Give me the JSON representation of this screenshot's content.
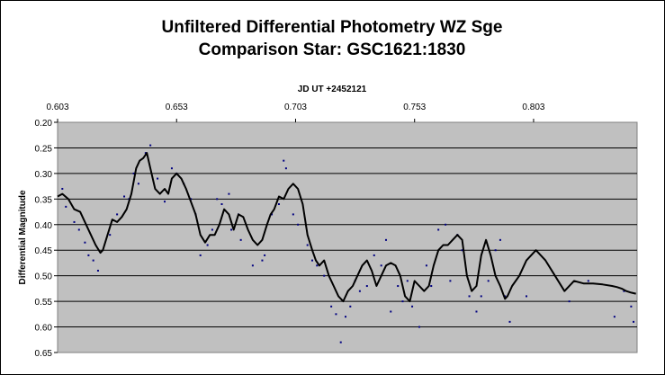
{
  "chart_data": {
    "type": "line",
    "title_line1": "Unfiltered Differential Photometry WZ Sge",
    "title_line2": "Comparison Star: GSC1621:1830",
    "xlabel": "JD UT +2452121",
    "ylabel": "Differential Magnitude",
    "x_axis_position": "top",
    "y_axis_reversed": true,
    "xlim": [
      0.603,
      0.8465
    ],
    "ylim": [
      0.2,
      0.65
    ],
    "x_ticks": [
      0.603,
      0.653,
      0.703,
      0.753,
      0.803
    ],
    "x_tick_labels": [
      "0.603",
      "0.653",
      "0.703",
      "0.753",
      "0.803"
    ],
    "y_ticks": [
      0.2,
      0.25,
      0.3,
      0.35,
      0.4,
      0.45,
      0.5,
      0.55,
      0.6,
      0.65
    ],
    "y_tick_labels": [
      "0.20",
      "0.25",
      "0.30",
      "0.35",
      "0.40",
      "0.45",
      "0.50",
      "0.55",
      "0.60",
      "0.65"
    ],
    "grid": "horizontal",
    "legend": "none",
    "colors": {
      "plot_background": "#C0C0C0",
      "line": "#000000",
      "points": "#000080",
      "grid": "#000000"
    },
    "series": [
      {
        "style": "line",
        "x": [
          0.603,
          0.605,
          0.6075,
          0.61,
          0.6125,
          0.615,
          0.617,
          0.619,
          0.621,
          0.622,
          0.624,
          0.626,
          0.628,
          0.63,
          0.632,
          0.634,
          0.636,
          0.6375,
          0.639,
          0.6405,
          0.642,
          0.644,
          0.646,
          0.648,
          0.6495,
          0.651,
          0.653,
          0.655,
          0.657,
          0.659,
          0.661,
          0.663,
          0.665,
          0.667,
          0.669,
          0.671,
          0.673,
          0.675,
          0.677,
          0.679,
          0.681,
          0.683,
          0.685,
          0.687,
          0.689,
          0.691,
          0.6925,
          0.694,
          0.696,
          0.698,
          0.7,
          0.702,
          0.704,
          0.706,
          0.708,
          0.71,
          0.7115,
          0.713,
          0.715,
          0.717,
          0.719,
          0.721,
          0.723,
          0.725,
          0.727,
          0.729,
          0.731,
          0.733,
          0.735,
          0.737,
          0.739,
          0.741,
          0.743,
          0.745,
          0.747,
          0.749,
          0.751,
          0.753,
          0.755,
          0.757,
          0.759,
          0.761,
          0.763,
          0.765,
          0.767,
          0.769,
          0.771,
          0.773,
          0.775,
          0.777,
          0.779,
          0.781,
          0.783,
          0.785,
          0.787,
          0.789,
          0.791,
          0.792,
          0.794,
          0.797,
          0.8,
          0.804,
          0.808,
          0.812,
          0.816,
          0.82,
          0.824,
          0.828,
          0.832,
          0.836,
          0.838,
          0.84,
          0.842,
          0.844,
          0.846
        ],
        "y": [
          0.345,
          0.34,
          0.35,
          0.37,
          0.375,
          0.4,
          0.42,
          0.44,
          0.455,
          0.45,
          0.42,
          0.39,
          0.395,
          0.385,
          0.37,
          0.34,
          0.29,
          0.275,
          0.27,
          0.26,
          0.29,
          0.33,
          0.34,
          0.33,
          0.34,
          0.31,
          0.3,
          0.31,
          0.33,
          0.355,
          0.38,
          0.42,
          0.435,
          0.42,
          0.42,
          0.4,
          0.37,
          0.38,
          0.41,
          0.38,
          0.385,
          0.41,
          0.43,
          0.44,
          0.43,
          0.4,
          0.38,
          0.37,
          0.345,
          0.35,
          0.33,
          0.32,
          0.33,
          0.36,
          0.42,
          0.45,
          0.47,
          0.48,
          0.47,
          0.5,
          0.52,
          0.54,
          0.55,
          0.53,
          0.52,
          0.5,
          0.48,
          0.47,
          0.49,
          0.52,
          0.5,
          0.48,
          0.475,
          0.48,
          0.5,
          0.54,
          0.55,
          0.51,
          0.52,
          0.53,
          0.52,
          0.48,
          0.45,
          0.44,
          0.44,
          0.43,
          0.42,
          0.43,
          0.5,
          0.53,
          0.52,
          0.46,
          0.43,
          0.46,
          0.5,
          0.52,
          0.545,
          0.54,
          0.52,
          0.5,
          0.47,
          0.45,
          0.47,
          0.5,
          0.53,
          0.51,
          0.515,
          0.515,
          0.517,
          0.52,
          0.522,
          0.525,
          0.53,
          0.533,
          0.535
        ]
      },
      {
        "style": "points",
        "x": [
          0.605,
          0.6065,
          0.61,
          0.612,
          0.6145,
          0.616,
          0.618,
          0.62,
          0.625,
          0.628,
          0.631,
          0.633,
          0.635,
          0.637,
          0.64,
          0.642,
          0.645,
          0.648,
          0.651,
          0.653,
          0.656,
          0.659,
          0.661,
          0.663,
          0.666,
          0.668,
          0.67,
          0.672,
          0.675,
          0.676,
          0.679,
          0.68,
          0.685,
          0.689,
          0.69,
          0.693,
          0.696,
          0.698,
          0.699,
          0.702,
          0.704,
          0.708,
          0.71,
          0.712,
          0.715,
          0.718,
          0.72,
          0.722,
          0.724,
          0.726,
          0.728,
          0.73,
          0.733,
          0.736,
          0.739,
          0.741,
          0.743,
          0.746,
          0.748,
          0.75,
          0.752,
          0.755,
          0.758,
          0.76,
          0.763,
          0.766,
          0.768,
          0.771,
          0.773,
          0.776,
          0.779,
          0.781,
          0.784,
          0.787,
          0.789,
          0.791,
          0.793,
          0.8,
          0.818,
          0.826,
          0.837,
          0.841,
          0.844,
          0.845
        ],
        "y": [
          0.33,
          0.365,
          0.395,
          0.41,
          0.435,
          0.46,
          0.47,
          0.49,
          0.42,
          0.38,
          0.345,
          0.35,
          0.3,
          0.32,
          0.26,
          0.245,
          0.31,
          0.355,
          0.29,
          0.3,
          0.32,
          0.35,
          0.38,
          0.46,
          0.44,
          0.41,
          0.35,
          0.36,
          0.34,
          0.41,
          0.38,
          0.43,
          0.48,
          0.47,
          0.46,
          0.38,
          0.36,
          0.275,
          0.29,
          0.38,
          0.4,
          0.44,
          0.47,
          0.48,
          0.5,
          0.56,
          0.575,
          0.63,
          0.58,
          0.56,
          0.51,
          0.53,
          0.52,
          0.46,
          0.48,
          0.43,
          0.57,
          0.52,
          0.55,
          0.51,
          0.56,
          0.6,
          0.48,
          0.52,
          0.41,
          0.4,
          0.51,
          0.42,
          0.45,
          0.54,
          0.57,
          0.54,
          0.51,
          0.45,
          0.43,
          0.54,
          0.59,
          0.54,
          0.55,
          0.51,
          0.58,
          0.53,
          0.56,
          0.59
        ]
      }
    ]
  }
}
